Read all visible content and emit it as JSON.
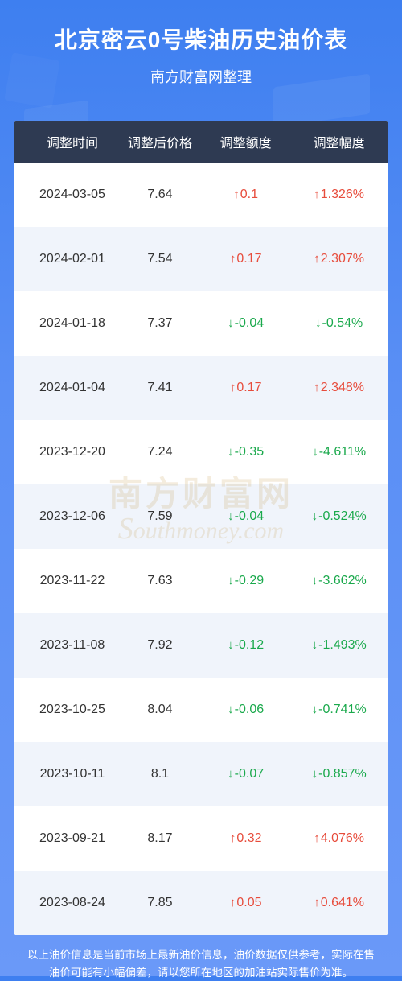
{
  "header": {
    "title": "北京密云0号柴油历史油价表",
    "subtitle": "南方财富网整理"
  },
  "colors": {
    "up": "#e74c3c",
    "down": "#1aa94c",
    "header_bg": "#2e3a52",
    "row_alt_bg": "#f0f4fb",
    "page_gradient_top": "#3e7ff0",
    "page_gradient_bottom": "#6a99f8"
  },
  "table": {
    "columns": [
      "调整时间",
      "调整后价格",
      "调整额度",
      "调整幅度"
    ],
    "rows": [
      {
        "date": "2024-03-05",
        "price": "7.64",
        "amount": "0.1",
        "percent": "1.326%",
        "dir": "up"
      },
      {
        "date": "2024-02-01",
        "price": "7.54",
        "amount": "0.17",
        "percent": "2.307%",
        "dir": "up"
      },
      {
        "date": "2024-01-18",
        "price": "7.37",
        "amount": "-0.04",
        "percent": "-0.54%",
        "dir": "down"
      },
      {
        "date": "2024-01-04",
        "price": "7.41",
        "amount": "0.17",
        "percent": "2.348%",
        "dir": "up"
      },
      {
        "date": "2023-12-20",
        "price": "7.24",
        "amount": "-0.35",
        "percent": "-4.611%",
        "dir": "down"
      },
      {
        "date": "2023-12-06",
        "price": "7.59",
        "amount": "-0.04",
        "percent": "-0.524%",
        "dir": "down"
      },
      {
        "date": "2023-11-22",
        "price": "7.63",
        "amount": "-0.29",
        "percent": "-3.662%",
        "dir": "down"
      },
      {
        "date": "2023-11-08",
        "price": "7.92",
        "amount": "-0.12",
        "percent": "-1.493%",
        "dir": "down"
      },
      {
        "date": "2023-10-25",
        "price": "8.04",
        "amount": "-0.06",
        "percent": "-0.741%",
        "dir": "down"
      },
      {
        "date": "2023-10-11",
        "price": "8.1",
        "amount": "-0.07",
        "percent": "-0.857%",
        "dir": "down"
      },
      {
        "date": "2023-09-21",
        "price": "8.17",
        "amount": "0.32",
        "percent": "4.076%",
        "dir": "up"
      },
      {
        "date": "2023-08-24",
        "price": "7.85",
        "amount": "0.05",
        "percent": "0.641%",
        "dir": "up"
      }
    ]
  },
  "watermark": {
    "cn": "南方财富网",
    "en": "outhmoney.com"
  },
  "footer": "以上油价信息是当前市场上最新油价信息，油价数据仅供参考，实际在售油价可能有小幅偏差，请以您所在地区的加油站实际售价为准。"
}
